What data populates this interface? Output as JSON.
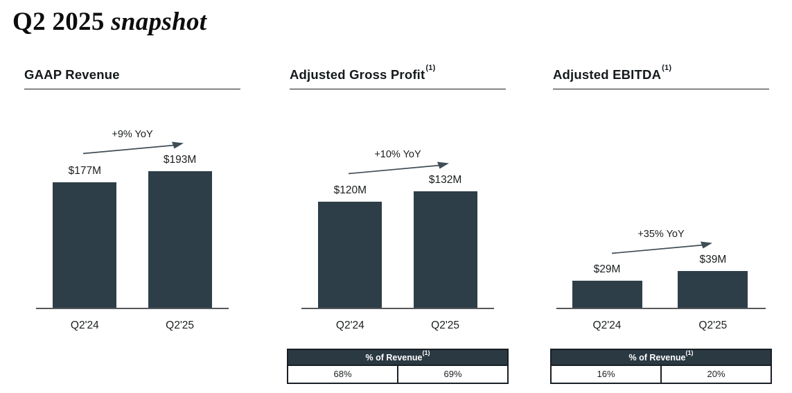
{
  "slide": {
    "title_regular": "Q2 2025 ",
    "title_italic": "snapshot"
  },
  "colors": {
    "bar_fill": "#2e3e48",
    "axis_line": "#55585c",
    "arrow": "#3f4d55",
    "table_header_bg": "#2b3942",
    "table_header_text": "#ffffff",
    "text_dark": "#1a1d1f"
  },
  "chart_data": [
    {
      "type": "bar",
      "title": "GAAP Revenue",
      "footnote_ref": "",
      "categories": [
        "Q2'24",
        "Q2'25"
      ],
      "values": [
        177,
        193
      ],
      "value_labels": [
        "$177M",
        "$193M"
      ],
      "annotation": "+9% YoY",
      "legend": "none",
      "grid": false,
      "table": null
    },
    {
      "type": "bar",
      "title": "Adjusted Gross Profit",
      "footnote_ref": "(1)",
      "categories": [
        "Q2'24",
        "Q2'25"
      ],
      "values": [
        120,
        132
      ],
      "value_labels": [
        "$120M",
        "$132M"
      ],
      "annotation": "+10% YoY",
      "legend": "none",
      "grid": false,
      "table": {
        "header": "% of Revenue",
        "footnote_ref": "(1)",
        "cells": [
          "68%",
          "69%"
        ]
      }
    },
    {
      "type": "bar",
      "title": "Adjusted EBITDA",
      "footnote_ref": "(1)",
      "categories": [
        "Q2'24",
        "Q2'25"
      ],
      "values": [
        29,
        39
      ],
      "value_labels": [
        "$29M",
        "$39M"
      ],
      "annotation": "+35% YoY",
      "legend": "none",
      "grid": false,
      "table": {
        "header": "% of Revenue",
        "footnote_ref": "(1)",
        "cells": [
          "16%",
          "20%"
        ]
      }
    }
  ]
}
